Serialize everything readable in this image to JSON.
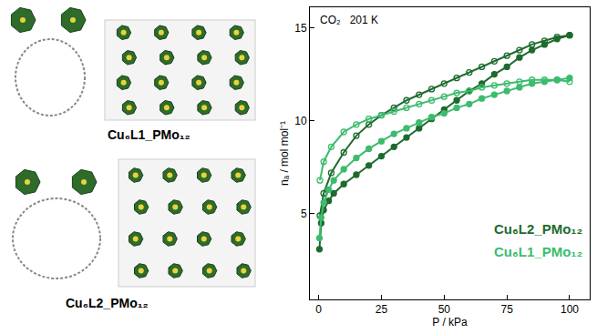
{
  "chart_data": {
    "type": "scatter",
    "title": "CO₂   201 K",
    "x_label": "P / kPa",
    "y_label": "nₐ / mol mol⁻¹",
    "xlim": [
      -3.5,
      108
    ],
    "xticks": [
      0,
      25,
      50,
      75,
      100
    ],
    "ylim": [
      0.4,
      16.1
    ],
    "yticks": [
      5,
      10,
      15
    ],
    "legend": "lower right",
    "grid": false,
    "series": [
      {
        "name": "Cu₆L2_PMo₁₂",
        "color": "#1e6b2e",
        "marker": "filled",
        "line_style": "solid",
        "x": [
          0.3,
          1,
          2,
          4,
          6,
          10,
          15,
          20,
          25,
          30,
          35,
          40,
          45,
          50,
          55,
          60,
          65,
          70,
          75,
          80,
          85,
          90,
          95,
          100
        ],
        "values": [
          3.1,
          4.5,
          5.2,
          5.7,
          6.1,
          6.6,
          7.1,
          7.6,
          8.1,
          8.6,
          9.1,
          9.6,
          10.1,
          10.6,
          11.1,
          11.6,
          12.0,
          12.5,
          12.9,
          13.4,
          13.8,
          14.1,
          14.4,
          14.6
        ]
      },
      {
        "name": "Cu₆L2_PMo₁₂",
        "color": "#1e6b2e",
        "marker": "open",
        "line_style": "solid",
        "x": [
          100,
          95,
          90,
          85,
          80,
          75,
          70,
          65,
          60,
          55,
          50,
          45,
          40,
          35,
          30,
          25,
          20,
          15,
          10,
          5,
          2,
          0.5
        ],
        "values": [
          14.6,
          14.5,
          14.3,
          14.1,
          13.8,
          13.5,
          13.2,
          12.9,
          12.6,
          12.3,
          12.0,
          11.7,
          11.4,
          11.1,
          10.7,
          10.3,
          9.8,
          9.2,
          8.3,
          7.2,
          6.1,
          4.9
        ]
      },
      {
        "name": "Cu₆L1_PMo₁₂",
        "color": "#3dbb6e",
        "marker": "filled",
        "line_style": "solid",
        "x": [
          0.3,
          1,
          2,
          4,
          6,
          10,
          15,
          20,
          25,
          30,
          35,
          40,
          45,
          50,
          55,
          60,
          65,
          70,
          75,
          80,
          85,
          90,
          95,
          100
        ],
        "values": [
          3.7,
          4.8,
          5.6,
          6.3,
          6.8,
          7.4,
          8.0,
          8.5,
          8.9,
          9.3,
          9.6,
          9.9,
          10.2,
          10.4,
          10.7,
          10.9,
          11.2,
          11.4,
          11.6,
          11.8,
          12.0,
          12.1,
          12.2,
          12.3
        ]
      },
      {
        "name": "Cu₆L1_PMo₁₂",
        "color": "#3dbb6e",
        "marker": "open",
        "line_style": "solid",
        "x": [
          100,
          95,
          90,
          85,
          80,
          75,
          70,
          65,
          60,
          55,
          50,
          45,
          40,
          35,
          30,
          25,
          20,
          15,
          10,
          5,
          2,
          0.5
        ],
        "values": [
          12.1,
          12.2,
          12.2,
          12.2,
          12.1,
          12.0,
          11.9,
          11.8,
          11.6,
          11.5,
          11.3,
          11.1,
          10.9,
          10.7,
          10.5,
          10.3,
          10.1,
          9.8,
          9.4,
          8.6,
          7.8,
          6.8
        ]
      }
    ]
  },
  "structures": [
    {
      "label": "Cu₆L1_PMo₁₂"
    },
    {
      "label": "Cu₆L2_PMo₁₂"
    }
  ]
}
